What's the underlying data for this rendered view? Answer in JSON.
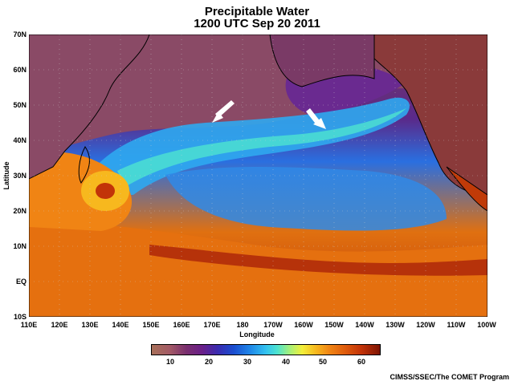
{
  "title": "Precipitable Water",
  "subtitle": "1200 UTC Sep 20 2011",
  "axis": {
    "x_title": "Longitude",
    "y_title": "Latitude",
    "x_ticks": [
      "110E",
      "120E",
      "130E",
      "140E",
      "150E",
      "160E",
      "170E",
      "180",
      "170W",
      "160W",
      "150W",
      "140W",
      "130W",
      "120W",
      "110W",
      "100W"
    ],
    "y_ticks": [
      "70N",
      "60N",
      "50N",
      "40N",
      "30N",
      "20N",
      "10N",
      "EQ",
      "10S"
    ]
  },
  "colorbar": {
    "ticks": [
      "10",
      "20",
      "30",
      "40",
      "50",
      "60"
    ],
    "colors": [
      "#a87059",
      "#7a2f6e",
      "#3a2bb0",
      "#1f86e8",
      "#33c2f0",
      "#9ef080",
      "#f3ef3a",
      "#f08414",
      "#c23308",
      "#7d1404"
    ]
  },
  "credit": "CIMSS/SSEC/The COMET Program",
  "annotations": [
    "arrow-170E-45N",
    "arrow-155W-43N"
  ]
}
